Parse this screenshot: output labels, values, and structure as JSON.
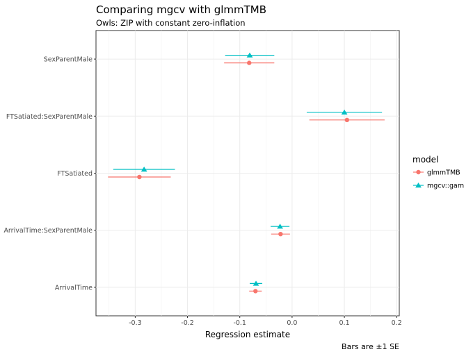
{
  "chart_data": {
    "type": "scatter",
    "title": "Comparing mgcv with glmmTMB",
    "subtitle": "Owls: ZIP with constant zero-inflation",
    "xlabel": "Regression estimate",
    "ylabel": "",
    "caption": "Bars are ±1 SE",
    "xlim": [
      -0.375,
      0.205
    ],
    "x_ticks": [
      -0.3,
      -0.2,
      -0.1,
      0.0,
      0.1,
      0.2
    ],
    "x_tick_labels": [
      "-0.3",
      "-0.2",
      "-0.1",
      "0.0",
      "0.1",
      "0.2"
    ],
    "categories": [
      "SexParentMale",
      "FTSatiated:SexParentMale",
      "FTSatiated",
      "ArrivalTime:SexParentMale",
      "ArrivalTime"
    ],
    "legend": {
      "title": "model",
      "position": "right"
    },
    "grid": true,
    "series": [
      {
        "name": "glmmTMB",
        "color": "#F8766D",
        "marker": "circle",
        "estimates": [
          -0.082,
          0.105,
          -0.292,
          -0.022,
          -0.07
        ],
        "se": [
          0.048,
          0.072,
          0.06,
          0.018,
          0.012
        ]
      },
      {
        "name": "mgcv::gam",
        "color": "#00BFC4",
        "marker": "triangle",
        "estimates": [
          -0.081,
          0.1,
          -0.283,
          -0.023,
          -0.069
        ],
        "se": [
          0.047,
          0.072,
          0.059,
          0.018,
          0.012
        ]
      }
    ]
  }
}
